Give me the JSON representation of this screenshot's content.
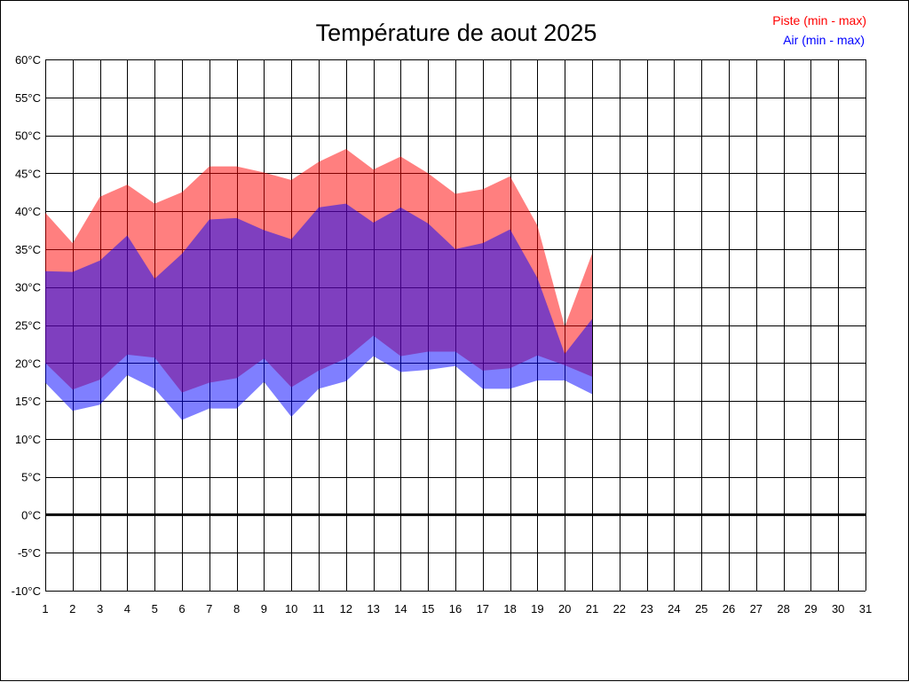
{
  "chart_data": {
    "type": "area",
    "title": "Température de aout 2025",
    "legend": [
      {
        "label": "Piste (min - max)",
        "color": "#ff0000"
      },
      {
        "label": "Air (min - max)",
        "color": "#0000ff"
      }
    ],
    "legend_position": "top-right",
    "xlabel": "",
    "ylabel": "",
    "x_ticks": [
      "1",
      "2",
      "3",
      "4",
      "5",
      "6",
      "7",
      "8",
      "9",
      "10",
      "11",
      "12",
      "13",
      "14",
      "15",
      "16",
      "17",
      "18",
      "19",
      "20",
      "21",
      "22",
      "23",
      "24",
      "25",
      "26",
      "27",
      "28",
      "29",
      "30",
      "31"
    ],
    "y_ticks": [
      "60°C",
      "55°C",
      "50°C",
      "45°C",
      "40°C",
      "35°C",
      "30°C",
      "25°C",
      "20°C",
      "15°C",
      "10°C",
      "5°C",
      "0°C",
      "-5°C",
      "-10°C"
    ],
    "xlim": [
      1,
      31
    ],
    "ylim": [
      -10,
      60
    ],
    "grid": true,
    "zero_line": true,
    "x": [
      1,
      2,
      3,
      4,
      5,
      6,
      7,
      8,
      9,
      10,
      11,
      12,
      13,
      14,
      15,
      16,
      17,
      18,
      19,
      20,
      21
    ],
    "series": [
      {
        "name": "Piste (min - max)",
        "color": "#ff0000",
        "fill": "#ff8080",
        "min": [
          20.0,
          16.5,
          17.8,
          21.1,
          20.7,
          16.1,
          17.4,
          18.0,
          20.6,
          16.8,
          19.0,
          20.6,
          23.6,
          20.9,
          21.5,
          21.5,
          19.0,
          19.3,
          21.0,
          19.7,
          18.2
        ],
        "max": [
          39.8,
          35.8,
          41.9,
          43.5,
          41.0,
          42.5,
          45.9,
          45.9,
          45.1,
          44.1,
          46.5,
          48.2,
          45.5,
          47.2,
          45.0,
          42.3,
          42.9,
          44.6,
          38.1,
          24.8,
          34.4
        ]
      },
      {
        "name": "Air (min - max)",
        "color": "#0000ff",
        "fill": "#8080ff",
        "min": [
          17.4,
          13.7,
          14.5,
          18.4,
          16.6,
          12.5,
          14.0,
          14.0,
          17.5,
          12.9,
          16.6,
          17.6,
          20.9,
          18.8,
          19.1,
          19.6,
          16.6,
          16.6,
          17.7,
          17.7,
          15.9
        ],
        "max": [
          32.1,
          32.0,
          33.5,
          36.8,
          31.1,
          34.4,
          38.9,
          39.1,
          37.5,
          36.3,
          40.5,
          41.0,
          38.5,
          40.5,
          38.4,
          35.0,
          35.8,
          37.6,
          31.2,
          21.2,
          25.8
        ]
      }
    ]
  }
}
